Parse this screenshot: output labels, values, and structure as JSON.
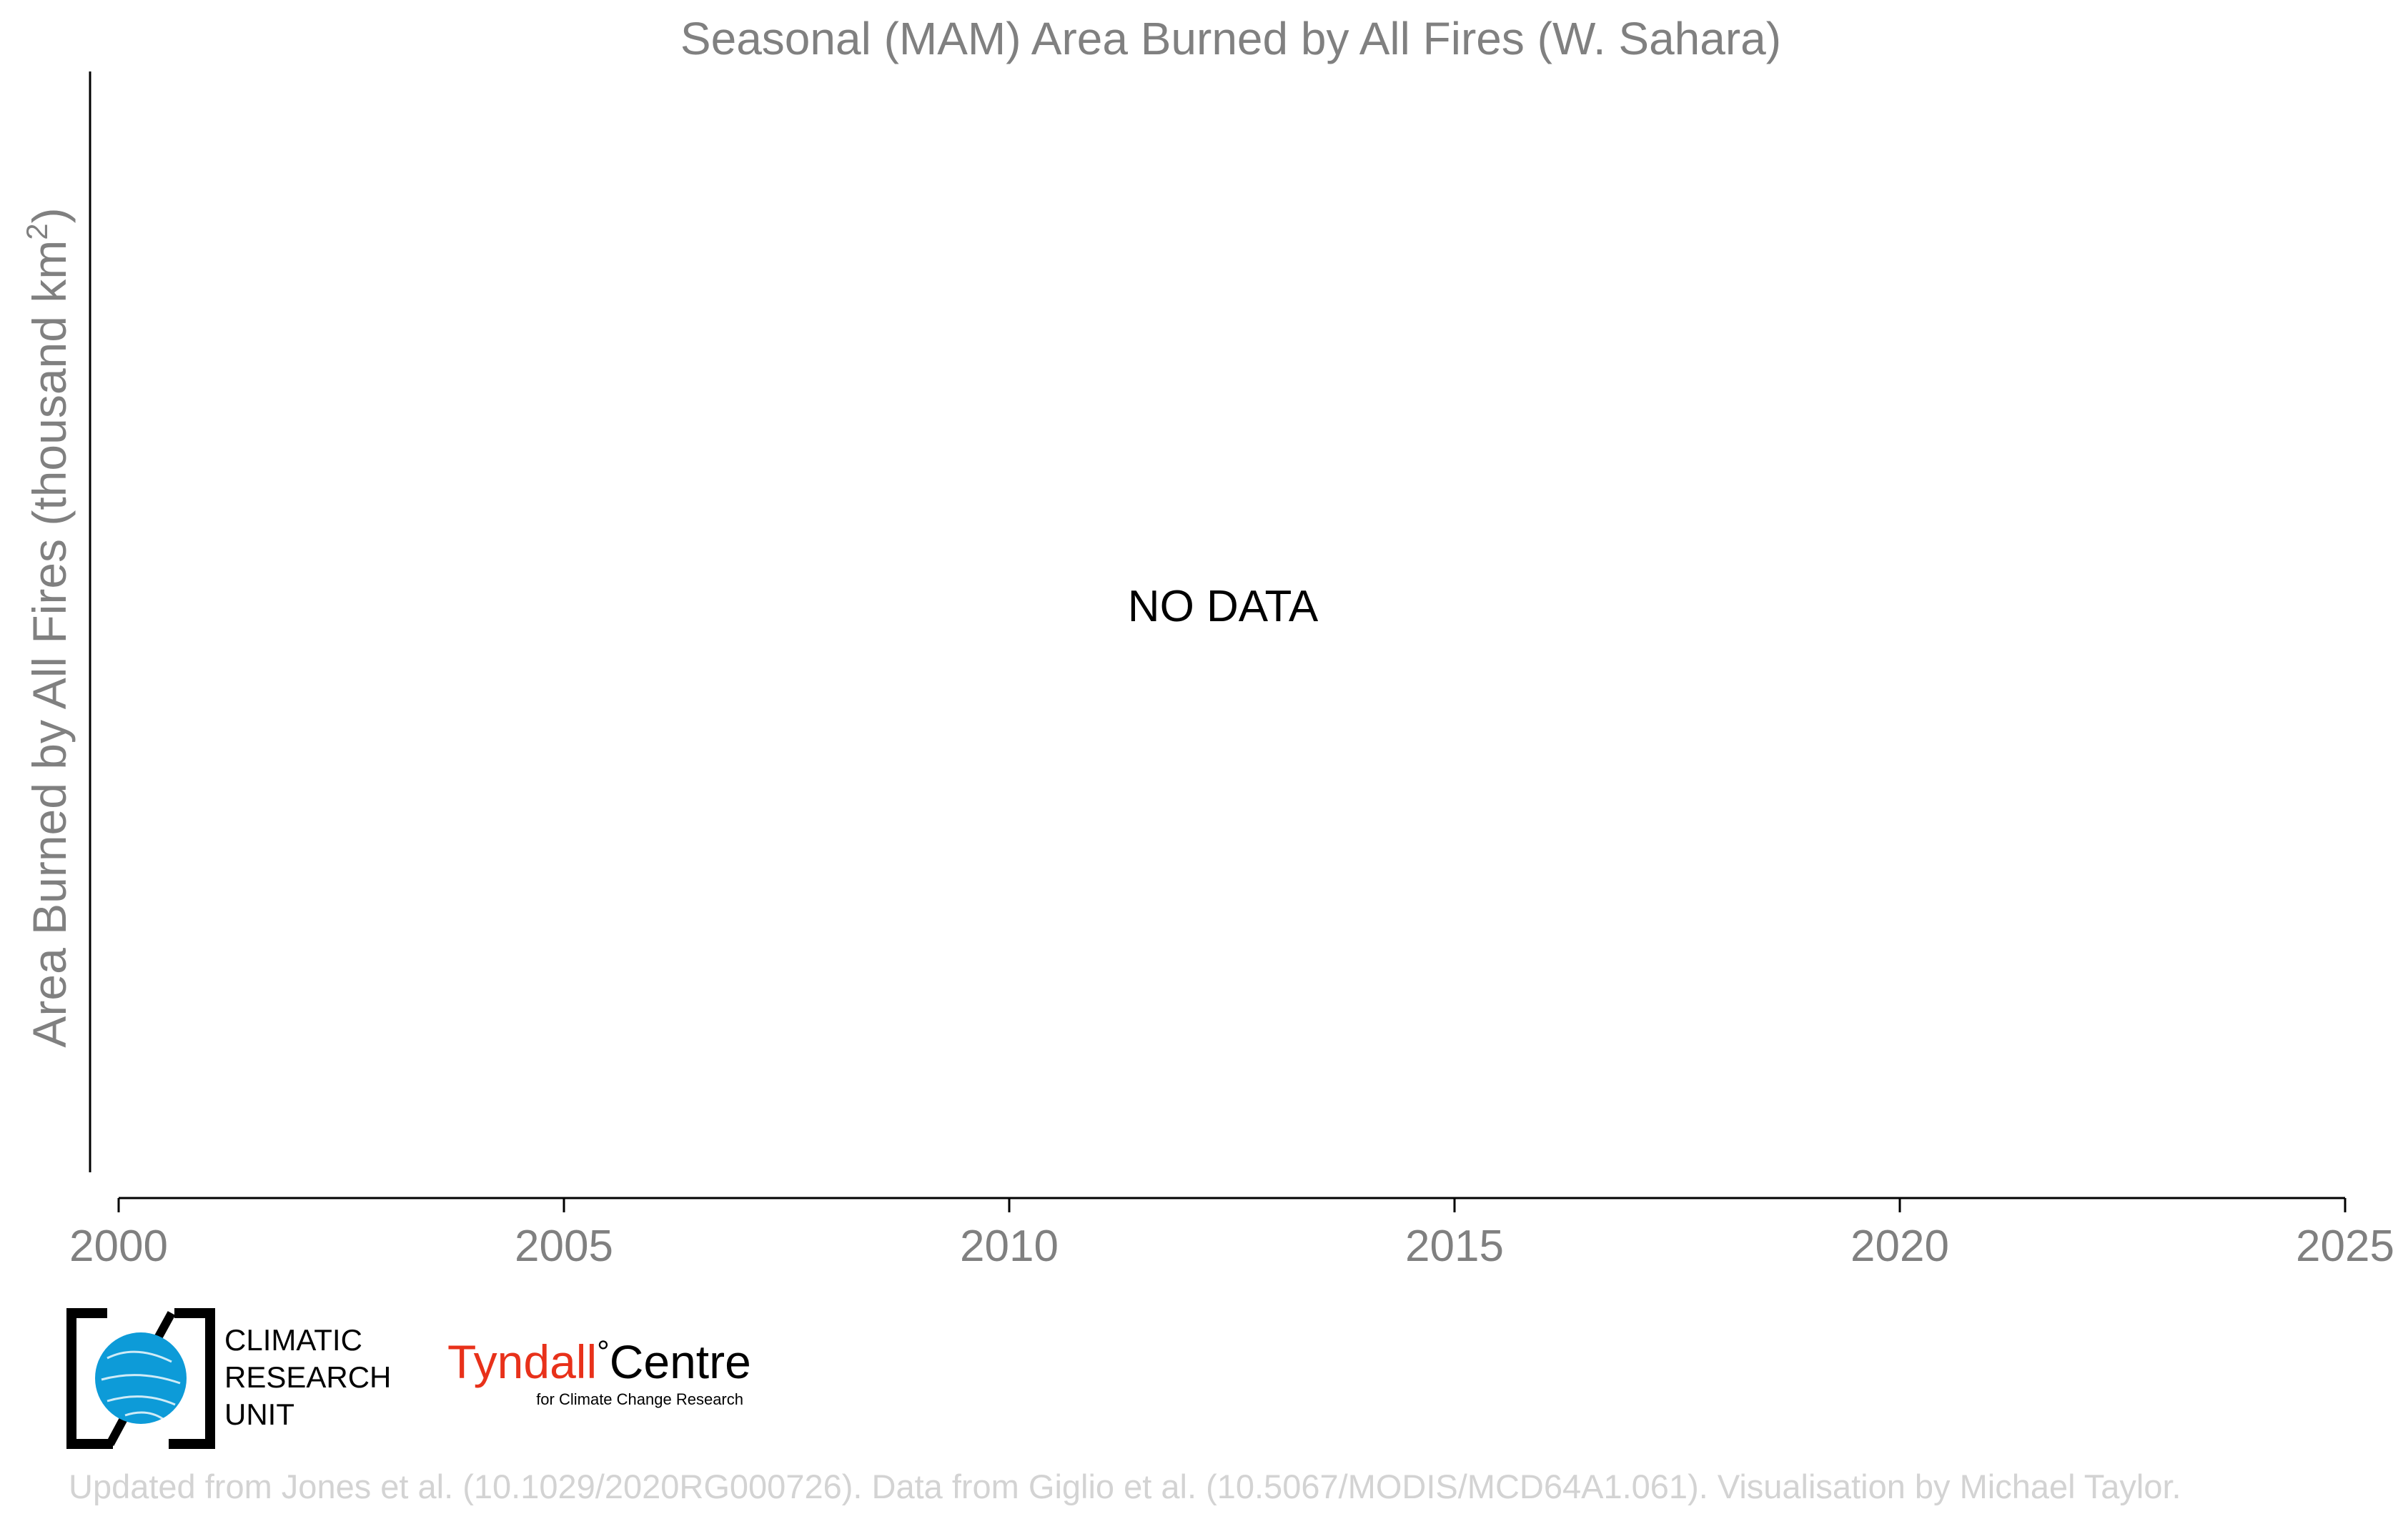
{
  "chart_data": {
    "type": "line",
    "title": "Seasonal (MAM) Area Burned by All Fires (W. Sahara)",
    "ylabel_main": "Area Burned by All Fires (thousand km",
    "ylabel_sup": "2",
    "ylabel_close": ")",
    "xlabel": "",
    "x_ticks": [
      "2000",
      "2005",
      "2010",
      "2015",
      "2020",
      "2025"
    ],
    "x_tick_values": [
      2000,
      2005,
      2010,
      2015,
      2020,
      2025
    ],
    "xlim": [
      2000,
      2025
    ],
    "series": [],
    "annotation": "NO DATA",
    "grid": false
  },
  "logos": {
    "cru": {
      "lines": [
        "CLIMATIC",
        "RESEARCH",
        "UNIT"
      ],
      "globe_color": "#0d9bd8"
    },
    "tyndall": {
      "name_red": "Tyndall",
      "degree": "°",
      "name_black": "Centre",
      "subtitle": "for Climate Change Research",
      "red_color": "#e8311a"
    }
  },
  "credit": "Updated from Jones et al. (10.1029/2020RG000726). Data from Giglio et al. (10.5067/MODIS/MCD64A1.061). Visualisation by Michael Taylor.",
  "colors": {
    "title": "#808080",
    "axis": "#000000",
    "credit": "#d3d3d3"
  }
}
